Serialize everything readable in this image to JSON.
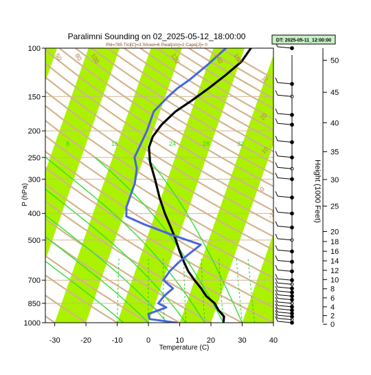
{
  "chart_data": {
    "type": "line",
    "title": "Paralimni Sounding on 02_2025-05-12_18:00:00",
    "subtitle": "Pld=785 Tlcl[C]=3 Showi=6 Pwat[cm]=2 Cape[J]= 0",
    "dt_box": "DT: 2025-05-11_12:00:00",
    "xlabel": "Temperature (C)",
    "ylabel": "P (hPa)",
    "y2label": "Height (1000 Feet)",
    "xlim": [
      -33,
      40
    ],
    "plim": [
      1000,
      100
    ],
    "x_ticks": [
      "-30",
      "-20",
      "-10",
      "0",
      "10",
      "20",
      "30",
      "40"
    ],
    "p_ticks": [
      "100",
      "150",
      "200",
      "250",
      "300",
      "400",
      "500",
      "700",
      "850",
      "1000"
    ],
    "height_ticks": [
      "50",
      "45",
      "40",
      "35",
      "30",
      "25",
      "20",
      "18",
      "16",
      "14",
      "12",
      "10",
      "8",
      "6",
      "4",
      "2",
      "0"
    ],
    "mixing_ratio_labels": [
      "8",
      "16",
      "24",
      "28",
      "32"
    ],
    "adiabat_labels": [
      "30",
      "20",
      "10",
      "0",
      "-10",
      "-20",
      "-30",
      "50",
      "80",
      "100",
      "120",
      "140",
      "160"
    ],
    "series": [
      {
        "color": "#000000",
        "points": [
          [
            24,
            1000
          ],
          [
            23.5,
            950
          ],
          [
            21,
            900
          ],
          [
            19,
            850
          ],
          [
            15.5,
            800
          ],
          [
            13,
            750
          ],
          [
            10,
            700
          ],
          [
            7,
            650
          ],
          [
            4.5,
            600
          ],
          [
            2,
            550
          ],
          [
            -0.5,
            500
          ],
          [
            -3.5,
            450
          ],
          [
            -7,
            400
          ],
          [
            -10.5,
            350
          ],
          [
            -14,
            300
          ],
          [
            -17.5,
            260
          ],
          [
            -19.5,
            230
          ],
          [
            -19.5,
            210
          ],
          [
            -18,
            190
          ],
          [
            -15,
            170
          ],
          [
            -11,
            155
          ],
          [
            -7,
            140
          ],
          [
            -3,
            125
          ],
          [
            0.5,
            112
          ],
          [
            2,
            100
          ]
        ]
      },
      {
        "color": "#4466dd",
        "points": [
          [
            9,
            1000
          ],
          [
            0,
            970
          ],
          [
            -1,
            930
          ],
          [
            4,
            880
          ],
          [
            1,
            850
          ],
          [
            2,
            800
          ],
          [
            4,
            750
          ],
          [
            0,
            700
          ],
          [
            1,
            650
          ],
          [
            3,
            600
          ],
          [
            6,
            550
          ],
          [
            8,
            520
          ],
          [
            -2,
            480
          ],
          [
            -12,
            440
          ],
          [
            -19,
            410
          ],
          [
            -20,
            380
          ],
          [
            -20,
            340
          ],
          [
            -20,
            310
          ],
          [
            -21,
            275
          ],
          [
            -23,
            250
          ],
          [
            -22,
            200
          ],
          [
            -22,
            170
          ],
          [
            -19,
            150
          ],
          [
            -17,
            140
          ],
          [
            -14,
            130
          ],
          [
            -10,
            115
          ],
          [
            -6,
            100
          ]
        ]
      }
    ]
  }
}
